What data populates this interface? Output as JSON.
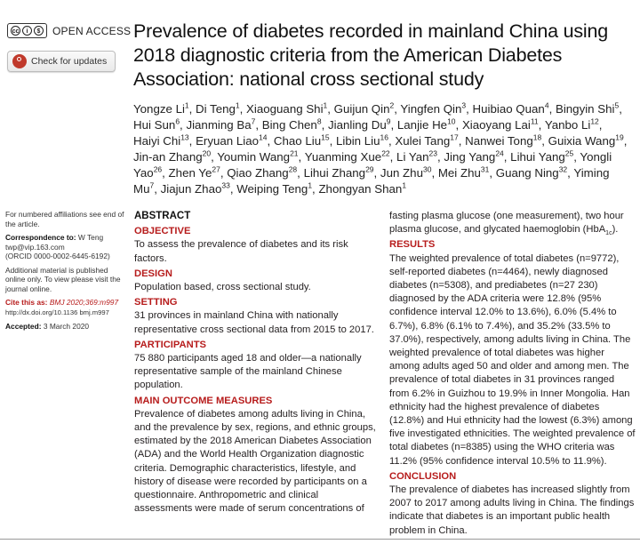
{
  "header": {
    "license_badge": "cc",
    "open_access": "OPEN ACCESS",
    "check_updates": "Check for updates",
    "title": "Prevalence of diabetes recorded in mainland China using 2018 diagnostic criteria from the American Diabetes Association: national cross sectional study"
  },
  "authors": [
    {
      "name": "Yongze Li",
      "sup": "1"
    },
    {
      "name": "Di Teng",
      "sup": "1"
    },
    {
      "name": "Xiaoguang Shi",
      "sup": "1"
    },
    {
      "name": "Guijun Qin",
      "sup": "2"
    },
    {
      "name": "Yingfen Qin",
      "sup": "3"
    },
    {
      "name": "Huibiao Quan",
      "sup": "4"
    },
    {
      "name": "Bingyin Shi",
      "sup": "5"
    },
    {
      "name": "Hui Sun",
      "sup": "6"
    },
    {
      "name": "Jianming Ba",
      "sup": "7"
    },
    {
      "name": "Bing Chen",
      "sup": "8"
    },
    {
      "name": "Jianling Du",
      "sup": "9"
    },
    {
      "name": "Lanjie He",
      "sup": "10"
    },
    {
      "name": "Xiaoyang Lai",
      "sup": "11"
    },
    {
      "name": "Yanbo Li",
      "sup": "12"
    },
    {
      "name": "Haiyi Chi",
      "sup": "13"
    },
    {
      "name": "Eryuan Liao",
      "sup": "14"
    },
    {
      "name": "Chao Liu",
      "sup": "15"
    },
    {
      "name": "Libin Liu",
      "sup": "16"
    },
    {
      "name": "Xulei Tang",
      "sup": "17"
    },
    {
      "name": "Nanwei Tong",
      "sup": "18"
    },
    {
      "name": "Guixia Wang",
      "sup": "19"
    },
    {
      "name": "Jin-an Zhang",
      "sup": "20"
    },
    {
      "name": "Youmin Wang",
      "sup": "21"
    },
    {
      "name": "Yuanming Xue",
      "sup": "22"
    },
    {
      "name": "Li Yan",
      "sup": "23"
    },
    {
      "name": "Jing Yang",
      "sup": "24"
    },
    {
      "name": "Lihui Yang",
      "sup": "25"
    },
    {
      "name": "Yongli Yao",
      "sup": "26"
    },
    {
      "name": "Zhen Ye",
      "sup": "27"
    },
    {
      "name": "Qiao Zhang",
      "sup": "28"
    },
    {
      "name": "Lihui Zhang",
      "sup": "29"
    },
    {
      "name": "Jun Zhu",
      "sup": "30"
    },
    {
      "name": "Mei Zhu",
      "sup": "31"
    },
    {
      "name": "Guang Ning",
      "sup": "32"
    },
    {
      "name": "Yiming Mu",
      "sup": "7"
    },
    {
      "name": "Jiajun Zhao",
      "sup": "33"
    },
    {
      "name": "Weiping Teng",
      "sup": "1"
    },
    {
      "name": "Zhongyan Shan",
      "sup": "1"
    }
  ],
  "sidebar": {
    "affiliations_note": "For numbered affiliations see end of the article.",
    "correspondence_label": "Correspondence to:",
    "correspondence_name": "W Teng",
    "correspondence_email": "twp@vip.163.com",
    "orcid": "(ORCID 0000-0002-6445-6192)",
    "additional_material": "Additional material is published online only. To view please visit the journal online.",
    "cite_label": "Cite this as:",
    "cite_value": "BMJ 2020;369:m997",
    "doi": "http://dx.doi.org/10.1136 bmj.m997",
    "accepted_label": "Accepted:",
    "accepted_date": "3 March 2020"
  },
  "abstract": {
    "heading": "ABSTRACT",
    "objective_hd": "OBJECTIVE",
    "objective": "To assess the prevalence of diabetes and its risk factors.",
    "design_hd": "DESIGN",
    "design": "Population based, cross sectional study.",
    "setting_hd": "SETTING",
    "setting": "31 provinces in mainland China with nationally representative cross sectional data from 2015 to 2017.",
    "participants_hd": "PARTICIPANTS",
    "participants": "75 880 participants aged 18 and older—a nationally representative sample of the mainland Chinese population.",
    "measures_hd": "MAIN OUTCOME MEASURES",
    "measures": "Prevalence of diabetes among adults living in China, and the prevalence by sex, regions, and ethnic groups, estimated by the 2018 American Diabetes Association (ADA) and the World Health Organization diagnostic criteria. Demographic characteristics, lifestyle, and history of disease were recorded by participants on a questionnaire. Anthropometric and clinical assessments were made of serum concentrations of",
    "measures_cont": "fasting plasma glucose (one measurement), two hour plasma glucose, and glycated haemoglobin (HbA",
    "measures_sub": "1c",
    "measures_end": ").",
    "results_hd": "RESULTS",
    "results": "The weighted prevalence of total diabetes (n=9772), self-reported diabetes (n=4464), newly diagnosed diabetes (n=5308), and prediabetes (n=27 230) diagnosed by the ADA criteria were 12.8% (95% confidence interval 12.0% to 13.6%), 6.0% (5.4% to 6.7%), 6.8% (6.1% to 7.4%), and 35.2% (33.5% to 37.0%), respectively, among adults living in China. The weighted prevalence of total diabetes was higher among adults aged 50 and older and among men. The prevalence of total diabetes in 31 provinces ranged from 6.2% in Guizhou to 19.9% in Inner Mongolia. Han ethnicity had the highest prevalence of diabetes (12.8%) and Hui ethnicity had the lowest (6.3%) among five investigated ethnicities. The weighted prevalence of total diabetes (n=8385) using the WHO criteria was 11.2% (95% confidence interval 10.5% to 11.9%).",
    "conclusion_hd": "CONCLUSION",
    "conclusion": "The prevalence of diabetes has increased slightly from 2007 to 2017 among adults living in China. The findings indicate that diabetes is an important public health problem in China."
  }
}
